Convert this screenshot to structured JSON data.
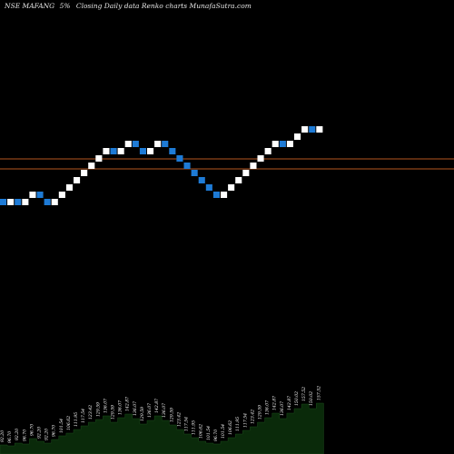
{
  "header": {
    "symbol": "NSE MAFANG",
    "suffix": "5%",
    "title": "Closing Daily data  Renko  charts MunafaSutra.com"
  },
  "chart_data": {
    "type": "renko",
    "colors": {
      "up_brick": "#ffffff",
      "down_brick": "#1e7bd6",
      "level_lines": "#b5561f",
      "volume_area": "#0a2a0a",
      "background": "#000000"
    },
    "bricks": [
      {
        "d": "down"
      },
      {
        "d": "up"
      },
      {
        "d": "down"
      },
      {
        "d": "up"
      },
      {
        "d": "up"
      },
      {
        "d": "down"
      },
      {
        "d": "down"
      },
      {
        "d": "up"
      },
      {
        "d": "up"
      },
      {
        "d": "up"
      },
      {
        "d": "up"
      },
      {
        "d": "up"
      },
      {
        "d": "up"
      },
      {
        "d": "up"
      },
      {
        "d": "up"
      },
      {
        "d": "down"
      },
      {
        "d": "up"
      },
      {
        "d": "up"
      },
      {
        "d": "down"
      },
      {
        "d": "down"
      },
      {
        "d": "up"
      },
      {
        "d": "up"
      },
      {
        "d": "down"
      },
      {
        "d": "down"
      },
      {
        "d": "down"
      },
      {
        "d": "down"
      },
      {
        "d": "down"
      },
      {
        "d": "down"
      },
      {
        "d": "down"
      },
      {
        "d": "down"
      },
      {
        "d": "up"
      },
      {
        "d": "up"
      },
      {
        "d": "up"
      },
      {
        "d": "up"
      },
      {
        "d": "up"
      },
      {
        "d": "up"
      },
      {
        "d": "up"
      },
      {
        "d": "up"
      },
      {
        "d": "down"
      },
      {
        "d": "up"
      },
      {
        "d": "up"
      },
      {
        "d": "up"
      },
      {
        "d": "down"
      },
      {
        "d": "up"
      }
    ],
    "price_labels": [
      "92.20",
      "96.70",
      "92.20",
      "96.70",
      "96.70",
      "92.20",
      "92.20",
      "96.70",
      "101.54",
      "106.62",
      "111.95",
      "117.54",
      "123.42",
      "129.59",
      "136.07",
      "129.59",
      "136.07",
      "142.87",
      "136.07",
      "129.59",
      "136.07",
      "142.87",
      "136.07",
      "129.59",
      "123.42",
      "117.54",
      "111.95",
      "106.62",
      "101.54",
      "96.70",
      "101.54",
      "106.62",
      "111.95",
      "117.54",
      "123.42",
      "129.59",
      "136.07",
      "142.87",
      "136.07",
      "142.87",
      "150.02",
      "157.52",
      "150.02",
      "157.52"
    ],
    "volume_profile": [
      0.1,
      0.09,
      0.12,
      0.11,
      0.17,
      0.14,
      0.12,
      0.16,
      0.2,
      0.23,
      0.27,
      0.31,
      0.35,
      0.38,
      0.42,
      0.35,
      0.4,
      0.44,
      0.39,
      0.33,
      0.37,
      0.42,
      0.37,
      0.32,
      0.27,
      0.22,
      0.18,
      0.14,
      0.12,
      0.11,
      0.14,
      0.18,
      0.22,
      0.26,
      0.3,
      0.35,
      0.4,
      0.45,
      0.39,
      0.45,
      0.5,
      0.55,
      0.5,
      0.56
    ]
  }
}
